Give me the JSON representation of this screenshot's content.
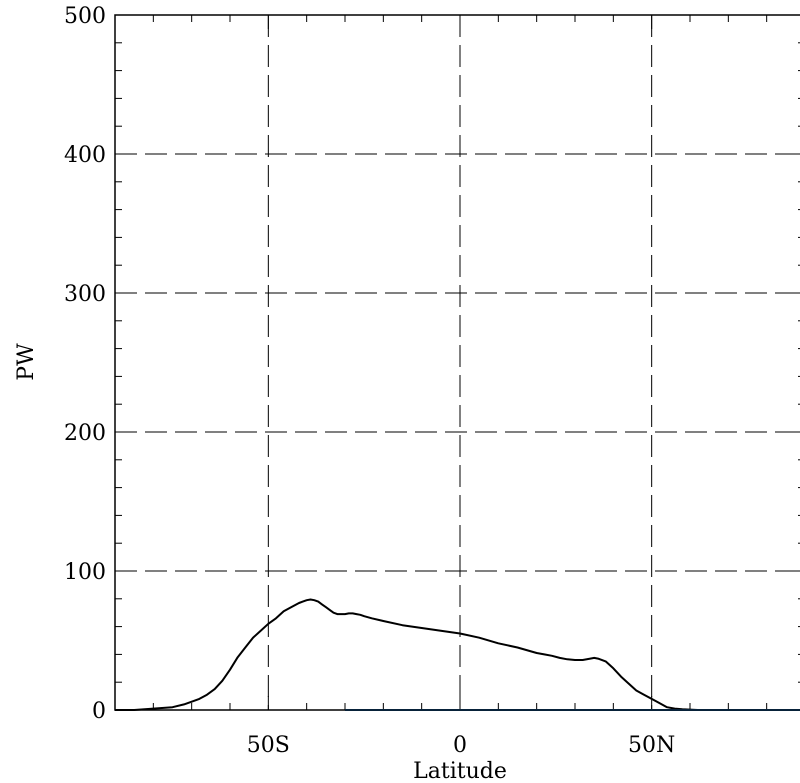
{
  "chart_data": {
    "type": "line",
    "title": "",
    "xlabel": "Latitude",
    "ylabel": "PW",
    "xlim": [
      -90,
      90
    ],
    "ylim": [
      0,
      500
    ],
    "grid": true,
    "x_ticks": [
      {
        "value": -50,
        "label": "50S"
      },
      {
        "value": 0,
        "label": "0"
      },
      {
        "value": 50,
        "label": "50N"
      }
    ],
    "y_ticks": [
      {
        "value": 0,
        "label": "0"
      },
      {
        "value": 100,
        "label": "100"
      },
      {
        "value": 200,
        "label": "200"
      },
      {
        "value": 300,
        "label": "300"
      },
      {
        "value": 400,
        "label": "400"
      },
      {
        "value": 500,
        "label": "500"
      }
    ],
    "colors": {
      "series_1": "#000000",
      "series_2": "#1e88e5",
      "grid": "#000000"
    },
    "series": [
      {
        "color": "#000000",
        "x": [
          -90,
          -85,
          -80,
          -75,
          -72,
          -70,
          -68,
          -66,
          -64,
          -62,
          -60,
          -58,
          -56,
          -54,
          -52,
          -50,
          -48,
          -46,
          -44,
          -42,
          -41,
          -40,
          -39,
          -38,
          -37,
          -36,
          -35,
          -34,
          -33,
          -32,
          -31,
          -30,
          -29,
          -28,
          -27,
          -26,
          -25,
          -23,
          -20,
          -15,
          -10,
          -5,
          0,
          5,
          10,
          15,
          20,
          22,
          24,
          26,
          28,
          30,
          32,
          34,
          35,
          36,
          38,
          40,
          42,
          44,
          46,
          48,
          50,
          52,
          54,
          56,
          58,
          62,
          67,
          75,
          80,
          85,
          90
        ],
        "y": [
          0,
          0,
          1,
          2,
          4,
          6,
          8,
          11,
          15,
          21,
          29,
          38,
          45,
          52,
          57,
          62,
          66,
          71,
          74,
          77,
          78,
          79,
          79.5,
          79,
          78,
          76,
          74,
          72,
          70,
          69,
          69,
          69,
          69.5,
          69.5,
          69,
          68.5,
          67.5,
          66,
          64,
          61,
          59,
          57,
          55,
          52,
          48,
          45,
          41,
          40,
          39,
          37.5,
          36.5,
          36,
          36,
          37,
          37.5,
          37,
          35,
          30,
          24,
          19,
          14,
          11,
          8,
          5,
          2,
          1,
          0.5,
          0,
          0,
          0,
          0,
          0,
          0
        ]
      },
      {
        "color": "#1e88e5",
        "x": [
          -30,
          90
        ],
        "y": [
          0,
          0
        ]
      }
    ]
  }
}
